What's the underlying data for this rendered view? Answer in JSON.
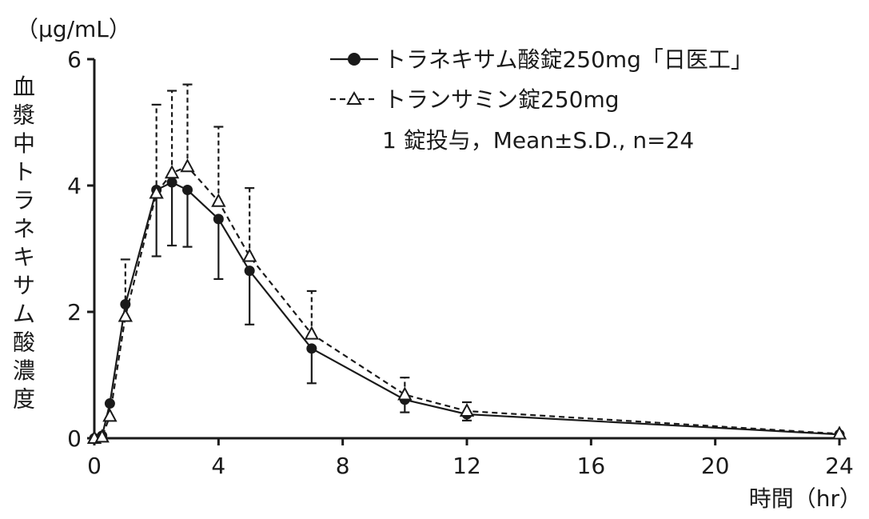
{
  "chart_data": {
    "type": "line",
    "unit_label": "（μg/mL）",
    "ylabel": "血漿中トラネキサム酸濃度",
    "xlabel": "時間（hr）",
    "xlim": [
      0,
      24
    ],
    "ylim": [
      0,
      6
    ],
    "x_ticks": [
      "0",
      "4",
      "8",
      "12",
      "16",
      "20",
      "24"
    ],
    "x_tick_values": [
      0,
      4,
      8,
      12,
      16,
      20,
      24
    ],
    "y_ticks": [
      "0",
      "2",
      "4",
      "6"
    ],
    "y_tick_values": [
      0,
      2,
      4,
      6
    ],
    "grid": false,
    "legend_position": "top-right",
    "note": "1 錠投与，Mean±S.D., n=24",
    "series": [
      {
        "name": "トラネキサム酸錠250mg「日医工」",
        "marker": "filled-circle",
        "line": "solid",
        "x": [
          0,
          0.25,
          0.5,
          1,
          2,
          2.5,
          3,
          4,
          5,
          7,
          10,
          12,
          24
        ],
        "y": [
          0,
          0.04,
          0.55,
          2.12,
          3.93,
          4.05,
          3.93,
          3.47,
          2.65,
          1.42,
          0.61,
          0.38,
          0.06
        ],
        "error_bar_direction": "down",
        "error": [
          0,
          0,
          0,
          0,
          1.05,
          1.0,
          0.9,
          0.95,
          0.85,
          0.55,
          0.2,
          0.1,
          0
        ]
      },
      {
        "name": "トランサミン錠250mg",
        "marker": "open-triangle",
        "line": "dashed",
        "x": [
          0,
          0.25,
          0.5,
          1,
          2,
          2.5,
          3,
          4,
          5,
          7,
          10,
          12,
          24
        ],
        "y": [
          0,
          0.02,
          0.35,
          1.93,
          3.88,
          4.2,
          4.3,
          3.75,
          2.88,
          1.65,
          0.69,
          0.43,
          0.07
        ],
        "error_bar_direction": "up",
        "error": [
          0,
          0,
          0,
          0.9,
          1.4,
          1.3,
          1.3,
          1.18,
          1.08,
          0.68,
          0.27,
          0.14,
          0
        ]
      }
    ]
  }
}
